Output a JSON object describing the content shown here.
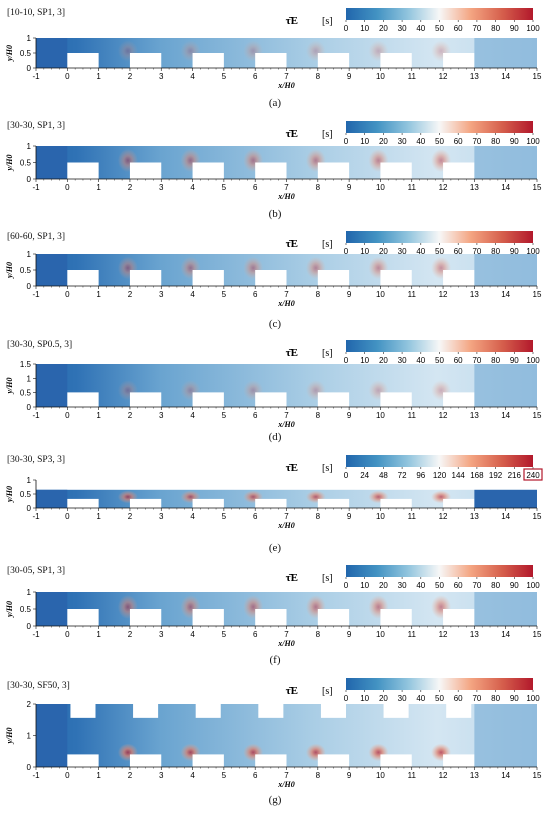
{
  "colorbar": {
    "title_symbol": "τ̄E",
    "unit": "[s]",
    "colors": [
      "#2166ac",
      "#4393c3",
      "#92c5de",
      "#f7f7f7",
      "#f4a582",
      "#d6604d",
      "#b2182b"
    ]
  },
  "axes": {
    "xlabel": "x/H0",
    "ylabel": "y/H0",
    "x_ticks": [
      "-1",
      "0",
      "1",
      "2",
      "3",
      "4",
      "5",
      "6",
      "7",
      "8",
      "9",
      "10",
      "11",
      "12",
      "13",
      "14",
      "15"
    ]
  },
  "panels": [
    {
      "id": "a",
      "case_label": "[10-10, SP1, 3]",
      "letter": "(a)",
      "y_ticks": [
        "0",
        "0.5",
        "1"
      ],
      "cb_ticks": [
        "0",
        "10",
        "20",
        "30",
        "40",
        "50",
        "60",
        "70",
        "80",
        "90",
        "100"
      ],
      "cb_highlight_last": false
    },
    {
      "id": "b",
      "case_label": "[30-30, SP1, 3]",
      "letter": "(b)",
      "y_ticks": [
        "0",
        "0.5",
        "1"
      ],
      "cb_ticks": [
        "0",
        "10",
        "20",
        "30",
        "40",
        "50",
        "60",
        "70",
        "80",
        "90",
        "100"
      ],
      "cb_highlight_last": false
    },
    {
      "id": "c",
      "case_label": "[60-60, SP1, 3]",
      "letter": "(c)",
      "y_ticks": [
        "0",
        "0.5",
        "1"
      ],
      "cb_ticks": [
        "0",
        "10",
        "20",
        "30",
        "40",
        "50",
        "60",
        "70",
        "80",
        "90",
        "100"
      ],
      "cb_highlight_last": false
    },
    {
      "id": "d",
      "case_label": "[30-30, SP0.5, 3]",
      "letter": "(d)",
      "y_ticks": [
        "0",
        "0.5",
        "1",
        "1.5"
      ],
      "cb_ticks": [
        "0",
        "10",
        "20",
        "30",
        "40",
        "50",
        "60",
        "70",
        "80",
        "90",
        "100"
      ],
      "cb_highlight_last": false
    },
    {
      "id": "e",
      "case_label": "[30-30, SP3, 3]",
      "letter": "(e)",
      "y_ticks": [
        "0",
        "0.5",
        "1"
      ],
      "cb_ticks": [
        "0",
        "24",
        "48",
        "72",
        "96",
        "120",
        "144",
        "168",
        "192",
        "216",
        "240"
      ],
      "cb_highlight_last": true
    },
    {
      "id": "f",
      "case_label": "[30-05, SP1, 3]",
      "letter": "(f)",
      "y_ticks": [
        "0",
        "0.5",
        "1"
      ],
      "cb_ticks": [
        "0",
        "10",
        "20",
        "30",
        "40",
        "50",
        "60",
        "70",
        "80",
        "90",
        "100"
      ],
      "cb_highlight_last": false
    },
    {
      "id": "g",
      "case_label": "[30-30, SF50, 3]",
      "letter": "(g)",
      "y_ticks": [
        "0",
        "1",
        "2"
      ],
      "cb_ticks": [
        "0",
        "10",
        "20",
        "30",
        "40",
        "50",
        "60",
        "70",
        "80",
        "90",
        "100"
      ],
      "cb_highlight_last": false
    }
  ]
}
